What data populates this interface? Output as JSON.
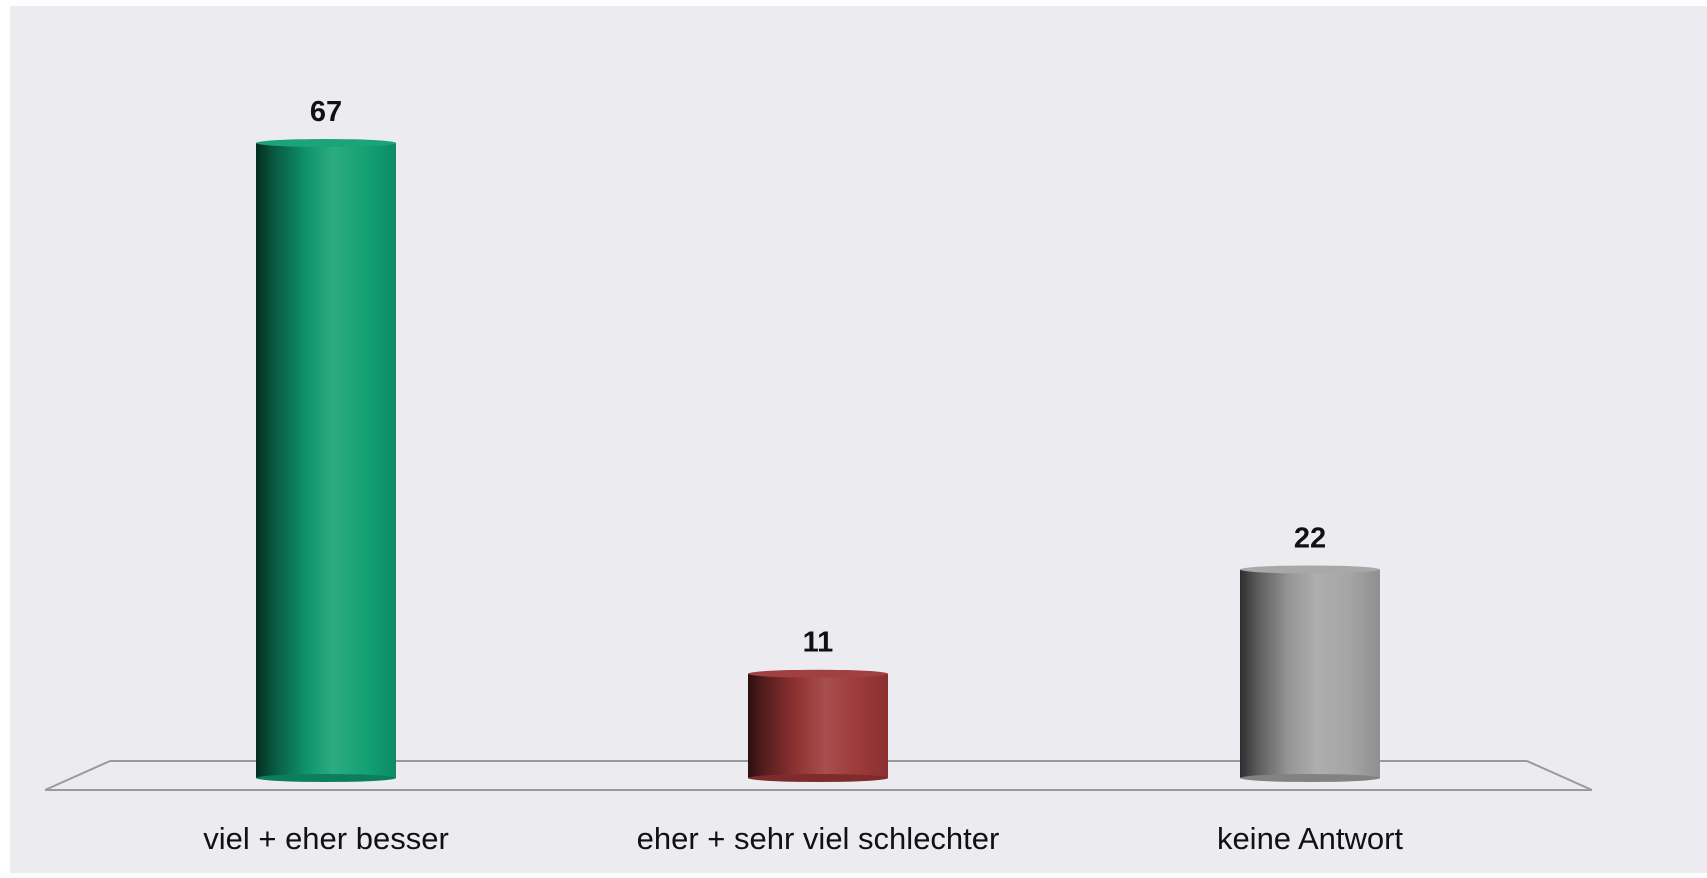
{
  "chart_data": {
    "type": "bar",
    "style": "3d-cylinder",
    "categories": [
      "viel + eher besser",
      "eher + sehr viel schlechter",
      "keine Antwort"
    ],
    "values": [
      67,
      11,
      22
    ],
    "ylim": [
      0,
      67
    ],
    "grid": false,
    "legend": "none",
    "colors": [
      "#0f9f70",
      "#9c3636",
      "#a3a3a3"
    ],
    "data_labels": [
      "67",
      "11",
      "22"
    ],
    "title": "",
    "xlabel": "",
    "ylabel": ""
  },
  "theme": {
    "background": "#ebebf0",
    "floor_line": "#9a9a9a"
  }
}
